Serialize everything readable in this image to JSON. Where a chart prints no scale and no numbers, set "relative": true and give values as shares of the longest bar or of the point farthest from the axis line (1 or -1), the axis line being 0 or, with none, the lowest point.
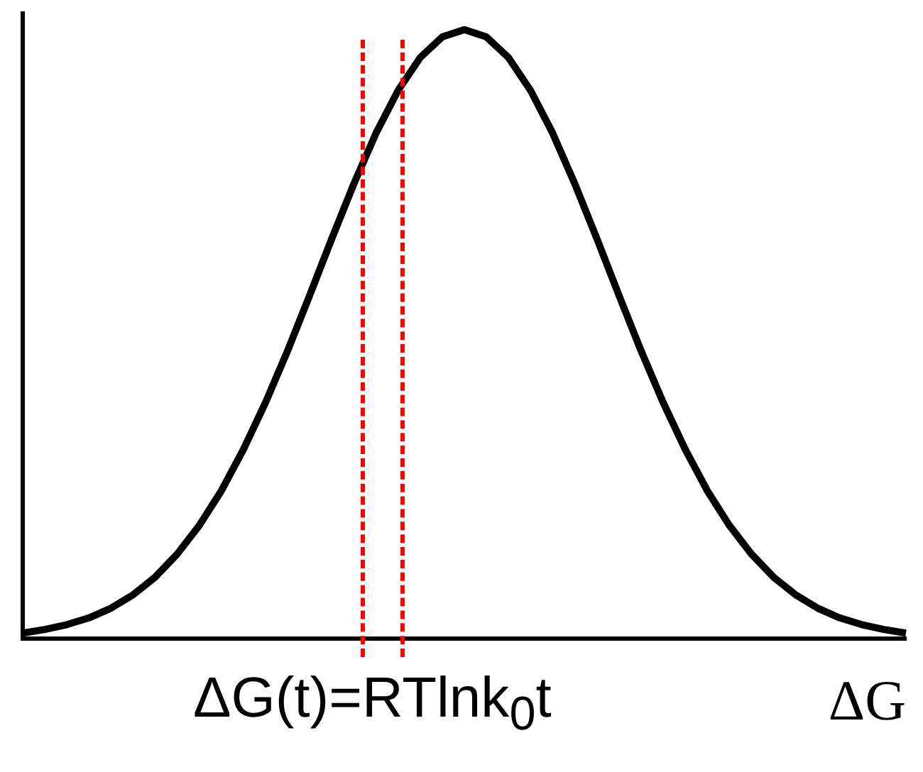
{
  "chart_data": {
    "type": "line",
    "relative": true,
    "categories": [
      null,
      null,
      null,
      null,
      null,
      null,
      null,
      null,
      null,
      null,
      null,
      null,
      null,
      null,
      null,
      null,
      null,
      null,
      null,
      null,
      null,
      null,
      null,
      null,
      null,
      null,
      null,
      null,
      null,
      null,
      null,
      null,
      null,
      null,
      null,
      null,
      null,
      null,
      null,
      null,
      null
    ],
    "series": [
      {
        "color": "#000000",
        "values": [
          0.009,
          0.015,
          0.023,
          0.034,
          0.05,
          0.072,
          0.101,
          0.139,
          0.186,
          0.243,
          0.311,
          0.388,
          0.473,
          0.564,
          0.657,
          0.747,
          0.83,
          0.9,
          0.954,
          0.988,
          1,
          0.988,
          0.954,
          0.9,
          0.83,
          0.747,
          0.657,
          0.564,
          0.473,
          0.388,
          0.311,
          0.243,
          0.186,
          0.139,
          0.101,
          0.072,
          0.05,
          0.034,
          0.023,
          0.015,
          0.009
        ]
      }
    ],
    "xlabel": "ΔG",
    "annotations": [
      "ΔG(t)=RTlnk$_{0}$t"
    ],
    "grid": false,
    "legend": false,
    "marker": "none",
    "line_style": "solid"
  }
}
